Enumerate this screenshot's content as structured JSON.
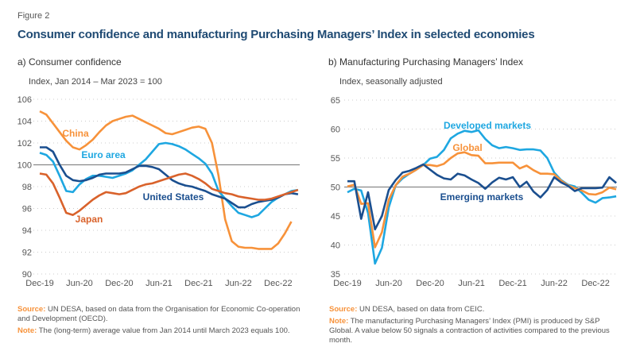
{
  "figure_label": "Figure 2",
  "title": "Consumer confidence and manufacturing Purchasing Managers’ Index in selected economies",
  "colors": {
    "orange": "#f7923a",
    "light_blue": "#1ea7e1",
    "dark_blue": "#1b4f8f",
    "red_orange": "#d9622b",
    "reference": "#888888"
  },
  "chart_data": [
    {
      "type": "line",
      "subtitle": "a) Consumer confidence",
      "ylabel": "Index, Jan 2014 – Mar 2023 = 100",
      "ylim": [
        90,
        106
      ],
      "yticks": [
        90,
        92,
        94,
        96,
        98,
        100,
        102,
        104,
        106
      ],
      "xticks": [
        "Dec-19",
        "Jun-20",
        "Dec-20",
        "Jun-21",
        "Dec-21",
        "Jun-22",
        "Dec-22"
      ],
      "x_start": "Dec-19",
      "frequency": "monthly",
      "reference_line": 100,
      "grid": "horizontal dotted",
      "series": [
        {
          "name": "China",
          "color": "#f7923a",
          "values": [
            104.9,
            104.6,
            103.8,
            103.0,
            102.2,
            101.6,
            101.4,
            101.8,
            102.3,
            103.0,
            103.6,
            104.0,
            104.2,
            104.4,
            104.5,
            104.2,
            103.9,
            103.6,
            103.3,
            102.9,
            102.8,
            103.0,
            103.2,
            103.4,
            103.5,
            103.3,
            102.0,
            99.0,
            95.0,
            93.0,
            92.5,
            92.4,
            92.4,
            92.3,
            92.3,
            92.3,
            92.8,
            93.7,
            94.8
          ]
        },
        {
          "name": "Euro area",
          "color": "#1ea7e1",
          "values": [
            101.1,
            100.9,
            100.3,
            99.0,
            97.6,
            97.5,
            98.2,
            98.7,
            99.0,
            99.0,
            98.9,
            98.8,
            99.0,
            99.2,
            99.5,
            100.0,
            100.5,
            101.2,
            101.9,
            102.0,
            101.9,
            101.7,
            101.4,
            101.0,
            100.6,
            100.1,
            99.2,
            97.6,
            96.9,
            96.2,
            95.6,
            95.4,
            95.2,
            95.4,
            96.0,
            96.6,
            97.0,
            97.3,
            97.6,
            97.7
          ]
        },
        {
          "name": "United States",
          "color": "#1b4f8f",
          "values": [
            101.6,
            101.6,
            101.2,
            100.0,
            99.0,
            98.6,
            98.5,
            98.6,
            98.8,
            99.1,
            99.2,
            99.2,
            99.2,
            99.3,
            99.6,
            99.9,
            99.9,
            99.8,
            99.6,
            99.1,
            98.6,
            98.3,
            98.1,
            98.0,
            97.8,
            97.6,
            97.3,
            97.1,
            96.9,
            96.5,
            96.1,
            96.1,
            96.4,
            96.6,
            96.7,
            96.8,
            97.0,
            97.3,
            97.4,
            97.3
          ]
        },
        {
          "name": "Japan",
          "color": "#d9622b",
          "values": [
            99.2,
            99.1,
            98.3,
            97.0,
            95.6,
            95.4,
            95.8,
            96.3,
            96.8,
            97.2,
            97.5,
            97.4,
            97.3,
            97.4,
            97.7,
            98.0,
            98.2,
            98.3,
            98.5,
            98.7,
            98.9,
            99.1,
            99.2,
            99.0,
            98.7,
            98.3,
            97.8,
            97.6,
            97.4,
            97.3,
            97.1,
            97.0,
            96.9,
            96.8,
            96.8,
            96.9,
            97.1,
            97.3,
            97.5,
            97.7
          ]
        }
      ]
    },
    {
      "type": "line",
      "subtitle": "b) Manufacturing Purchasing Managers’ Index",
      "ylabel": "Index, seasonally adjusted",
      "ylim": [
        35,
        65
      ],
      "yticks": [
        35,
        40,
        45,
        50,
        55,
        60,
        65
      ],
      "xticks": [
        "Dec-19",
        "Jun-20",
        "Dec-20",
        "Jun-21",
        "Dec-21",
        "Jun-22",
        "Dec-22"
      ],
      "x_start": "Dec-19",
      "frequency": "monthly",
      "reference_line": 50,
      "grid": "horizontal dotted",
      "series": [
        {
          "name": "Developed markets",
          "color": "#1ea7e1",
          "values": [
            49.1,
            49.7,
            49.4,
            45.5,
            36.8,
            39.5,
            46.5,
            50.3,
            51.5,
            52.3,
            53.0,
            53.8,
            54.9,
            55.2,
            56.4,
            58.4,
            59.2,
            59.7,
            59.5,
            59.8,
            58.3,
            57.2,
            56.7,
            56.9,
            56.7,
            56.4,
            56.5,
            56.5,
            56.3,
            55.0,
            52.5,
            51.2,
            50.4,
            50.1,
            49.0,
            47.8,
            47.3,
            48.1,
            48.2,
            48.4
          ]
        },
        {
          "name": "Global",
          "color": "#f7923a",
          "values": [
            50.1,
            50.4,
            47.1,
            47.2,
            39.6,
            42.2,
            47.8,
            50.3,
            51.8,
            52.3,
            53.0,
            53.8,
            53.8,
            53.6,
            54.0,
            55.0,
            55.8,
            56.0,
            55.5,
            55.4,
            54.1,
            54.1,
            54.2,
            54.2,
            54.2,
            53.2,
            53.7,
            52.9,
            52.3,
            52.3,
            52.2,
            51.1,
            50.3,
            49.8,
            49.4,
            48.8,
            48.7,
            49.1,
            49.9,
            49.6
          ]
        },
        {
          "name": "Emerging markets",
          "color": "#1b4f8f",
          "values": [
            51.0,
            51.0,
            44.5,
            49.1,
            42.7,
            45.0,
            49.5,
            51.2,
            52.5,
            52.8,
            53.3,
            53.9,
            53.0,
            52.1,
            51.5,
            51.3,
            52.3,
            52.0,
            51.3,
            50.7,
            49.7,
            50.8,
            51.6,
            51.3,
            51.7,
            50.0,
            50.9,
            49.2,
            48.2,
            49.5,
            51.7,
            50.8,
            50.2,
            49.3,
            49.8,
            49.8,
            49.8,
            49.9,
            51.7,
            50.7
          ]
        }
      ]
    }
  ],
  "footnotes": {
    "left": {
      "source_label": "Source:",
      "source": "UN DESA, based on data from the Organisation for Economic Co-operation and Development (OECD).",
      "note_label": "Note:",
      "note": "The (long-term) average value from Jan 2014 until March 2023 equals 100."
    },
    "right": {
      "source_label": "Source:",
      "source": "UN DESA, based on data from CEIC.",
      "note_label": "Note:",
      "note": "The manufacturing Purchasing Managers’ Index (PMI) is produced by S&P Global. A value below 50 signals a contraction of activities compared to the previous month."
    }
  }
}
